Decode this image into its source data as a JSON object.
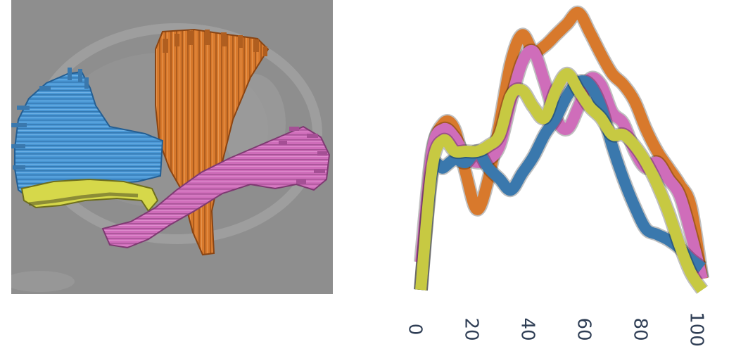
{
  "figure": {
    "left_panel": "tractography rendering",
    "right_panel": "tract profiles"
  },
  "colors": {
    "blue": "#3a78ad",
    "orange": "#d8792c",
    "pink": "#cf6dba",
    "yellow": "#c7c942",
    "background_gray": "#8e8e8e"
  },
  "chart_data": {
    "type": "line",
    "orientation": "x-axis tick labels rotated 90 degrees",
    "xlim": [
      0,
      100
    ],
    "ylim": [
      0,
      1
    ],
    "grid": false,
    "axis_line": false,
    "x_ticks": [
      "0",
      "20",
      "40",
      "60",
      "80",
      "100"
    ],
    "x_tick_values": [
      0,
      20,
      40,
      60,
      80,
      100
    ],
    "xlabel": "",
    "ylabel": "",
    "series": [
      {
        "color": "#d8792c",
        "x": [
          0,
          4,
          8,
          12,
          16,
          20,
          24,
          28,
          32,
          36,
          40,
          44,
          48,
          52,
          56,
          60,
          64,
          68,
          72,
          76,
          80,
          84,
          88,
          92,
          96,
          100
        ],
        "y": [
          0.0,
          0.48,
          0.6,
          0.58,
          0.42,
          0.29,
          0.4,
          0.6,
          0.82,
          0.92,
          0.86,
          0.88,
          0.92,
          0.96,
          1.0,
          0.93,
          0.85,
          0.78,
          0.74,
          0.68,
          0.58,
          0.5,
          0.44,
          0.38,
          0.3,
          0.04
        ]
      },
      {
        "color": "#cf6dba",
        "x": [
          0,
          4,
          8,
          12,
          16,
          20,
          24,
          28,
          32,
          36,
          40,
          44,
          48,
          52,
          56,
          60,
          64,
          68,
          72,
          76,
          80,
          84,
          88,
          92,
          96,
          100
        ],
        "y": [
          0.1,
          0.5,
          0.58,
          0.55,
          0.48,
          0.46,
          0.47,
          0.52,
          0.68,
          0.82,
          0.86,
          0.75,
          0.62,
          0.58,
          0.66,
          0.76,
          0.74,
          0.64,
          0.6,
          0.5,
          0.44,
          0.46,
          0.4,
          0.34,
          0.2,
          0.04
        ]
      },
      {
        "color": "#3a78ad",
        "x": [
          0,
          4,
          8,
          12,
          16,
          20,
          24,
          28,
          32,
          36,
          40,
          44,
          48,
          52,
          56,
          60,
          64,
          68,
          72,
          76,
          80,
          84,
          88,
          92,
          96,
          100
        ],
        "y": [
          0.0,
          0.42,
          0.44,
          0.47,
          0.46,
          0.5,
          0.44,
          0.4,
          0.36,
          0.42,
          0.48,
          0.56,
          0.62,
          0.7,
          0.75,
          0.74,
          0.66,
          0.52,
          0.4,
          0.3,
          0.22,
          0.2,
          0.18,
          0.15,
          0.11,
          0.08
        ]
      },
      {
        "color": "#c7c942",
        "x": [
          0,
          4,
          8,
          12,
          16,
          20,
          24,
          28,
          32,
          36,
          40,
          44,
          48,
          52,
          56,
          60,
          64,
          68,
          72,
          76,
          80,
          84,
          88,
          92,
          96,
          100
        ],
        "y": [
          0.0,
          0.44,
          0.54,
          0.5,
          0.5,
          0.5,
          0.52,
          0.56,
          0.7,
          0.72,
          0.66,
          0.62,
          0.72,
          0.78,
          0.72,
          0.66,
          0.62,
          0.56,
          0.56,
          0.52,
          0.46,
          0.38,
          0.28,
          0.16,
          0.06,
          0.0
        ]
      }
    ]
  }
}
